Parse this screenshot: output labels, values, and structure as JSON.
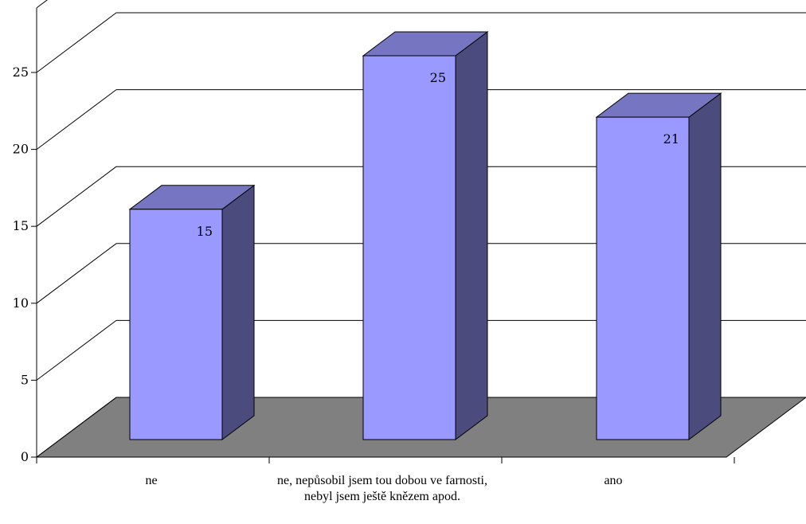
{
  "chart_data": {
    "type": "bar",
    "categories": [
      "ne",
      "ne, nepůsobil jsem tou dobou ve farnosti, nebyl jsem ještě knězem apod.",
      "ano"
    ],
    "values": [
      15,
      25,
      21
    ],
    "data_labels": [
      "15",
      "25",
      "21"
    ],
    "ylim": [
      0,
      25
    ],
    "yticks": [
      0,
      5,
      10,
      15,
      20,
      25
    ],
    "ytick_labels": [
      "0",
      "5",
      "10",
      "15",
      "20",
      "25"
    ],
    "title": "",
    "xlabel": "",
    "ylabel": "",
    "grid": true,
    "legend": "none",
    "three_d": true
  },
  "colors": {
    "bar_front": "#9999ff",
    "bar_top": "#7575c2",
    "bar_side": "#4b4b7d",
    "floor": "#808080",
    "grid": "#000000",
    "background": "#ffffff"
  }
}
